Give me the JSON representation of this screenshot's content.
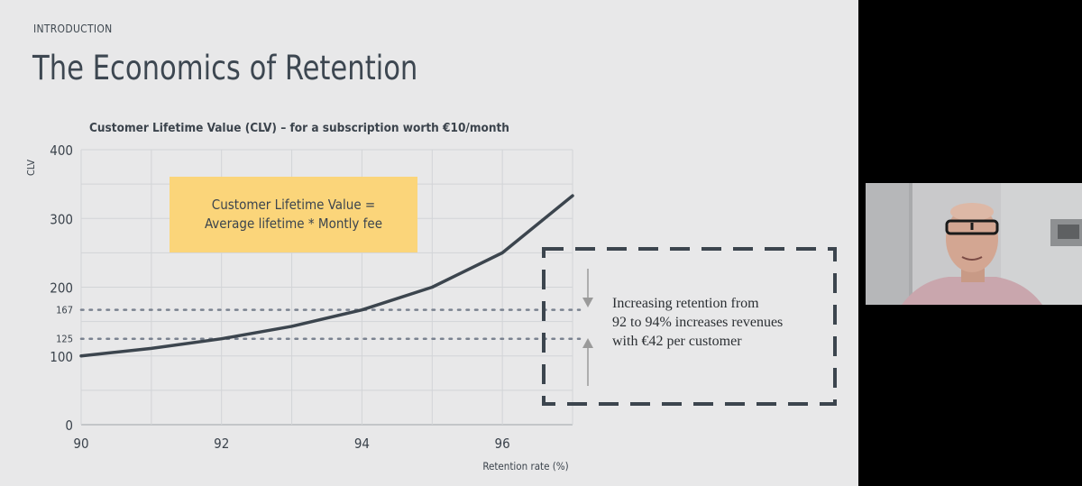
{
  "slide": {
    "section": "INTRODUCTION",
    "title": "The Economics of Retention"
  },
  "formula_box": {
    "line1": "Customer Lifetime Value =",
    "line2": "Average lifetime * Montly fee"
  },
  "callout": {
    "line1": "Increasing retention from",
    "line2": "92 to 94% increases revenues",
    "line3": "with €42 per customer"
  },
  "colors": {
    "slide_bg": "#e8e8e9",
    "curve": "#3c454e",
    "formula_bg": "#fbd57a",
    "dotted": "#7a8290"
  },
  "chart_data": {
    "type": "line",
    "title": "Customer Lifetime Value (CLV) – for a subscription worth €10/month",
    "xlabel": "Retention rate (%)",
    "ylabel": "CLV",
    "xlim": [
      90,
      97
    ],
    "ylim": [
      0,
      400
    ],
    "x_ticks": [
      "90",
      "92",
      "94",
      "96"
    ],
    "y_ticks": [
      "0",
      "100",
      "200",
      "300",
      "400"
    ],
    "extra_y_labels": [
      "125",
      "167"
    ],
    "grid": true,
    "series": [
      {
        "x": [
          90,
          91,
          92,
          93,
          94,
          95,
          96,
          97
        ],
        "y": [
          100,
          111,
          125,
          143,
          167,
          200,
          250,
          333
        ]
      }
    ],
    "reference_lines": [
      125,
      167
    ]
  }
}
